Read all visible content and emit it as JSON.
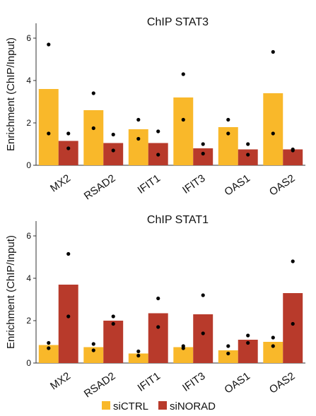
{
  "colors": {
    "siCTRL": "#F9B82A",
    "siNORAD": "#B83A2B",
    "dot": "#000000"
  },
  "legend": [
    {
      "label": "siCTRL",
      "color": "#F9B82A"
    },
    {
      "label": "siNORAD",
      "color": "#B83A2B"
    }
  ],
  "chart_data": [
    {
      "type": "bar",
      "title": "ChIP STAT3",
      "ylabel": "Enrichment (ChIP/Input)",
      "xlabel": "",
      "ylim": [
        0,
        6.7
      ],
      "yticks": [
        0,
        2,
        4,
        6
      ],
      "categories": [
        "MX2",
        "RSAD2",
        "IFIT1",
        "IFIT3",
        "OAS1",
        "OAS2"
      ],
      "series": [
        {
          "name": "siCTRL",
          "values": [
            3.6,
            2.6,
            1.7,
            3.2,
            1.8,
            3.4
          ],
          "points": [
            [
              5.7,
              1.5
            ],
            [
              3.4,
              1.75
            ],
            [
              2.15,
              1.25
            ],
            [
              4.3,
              2.15
            ],
            [
              2.15,
              1.5
            ],
            [
              5.35,
              1.5
            ]
          ]
        },
        {
          "name": "siNORAD",
          "values": [
            1.15,
            1.05,
            1.05,
            0.8,
            0.75,
            0.75
          ],
          "points": [
            [
              1.5,
              0.8
            ],
            [
              1.45,
              0.7
            ],
            [
              1.6,
              0.5
            ],
            [
              1.0,
              0.55
            ],
            [
              1.0,
              0.5
            ],
            [
              0.75,
              0.7
            ]
          ]
        }
      ],
      "grid": false,
      "legend_position": "bottom"
    },
    {
      "type": "bar",
      "title": "ChIP STAT1",
      "ylabel": "Enrichment (ChIP/Input)",
      "xlabel": "",
      "ylim": [
        0,
        6.7
      ],
      "yticks": [
        0,
        2,
        4,
        6
      ],
      "categories": [
        "MX2",
        "RSAD2",
        "IFIT1",
        "IFIT3",
        "OAS1",
        "OAS2"
      ],
      "series": [
        {
          "name": "siCTRL",
          "values": [
            0.85,
            0.75,
            0.45,
            0.75,
            0.6,
            1.0
          ],
          "points": [
            [
              0.95,
              0.7
            ],
            [
              0.9,
              0.6
            ],
            [
              0.55,
              0.35
            ],
            [
              0.8,
              0.7
            ],
            [
              0.8,
              0.45
            ],
            [
              1.2,
              0.8
            ]
          ]
        },
        {
          "name": "siNORAD",
          "values": [
            3.7,
            2.0,
            2.35,
            2.3,
            1.1,
            3.3
          ],
          "points": [
            [
              5.15,
              2.2
            ],
            [
              2.2,
              1.85
            ],
            [
              3.05,
              1.7
            ],
            [
              3.2,
              1.4
            ],
            [
              1.3,
              0.95
            ],
            [
              4.8,
              1.85
            ]
          ]
        }
      ],
      "grid": false,
      "legend_position": "bottom"
    }
  ]
}
